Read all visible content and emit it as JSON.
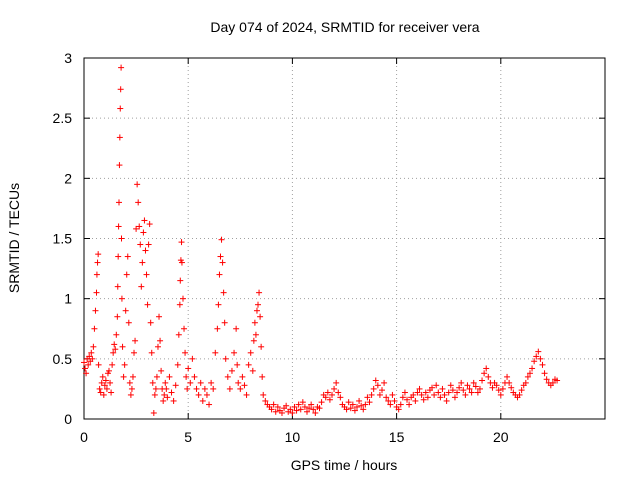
{
  "chart_data": {
    "type": "scatter",
    "title": "Day 074 of 2024, SRMTID for receiver vera",
    "xlabel": "GPS time / hours",
    "ylabel": "SRMTID / TECUs",
    "xlim": [
      0,
      25
    ],
    "ylim": [
      0,
      3
    ],
    "xticks": [
      0,
      5,
      10,
      15,
      20
    ],
    "xtick_labels": [
      "0",
      "5",
      "10",
      "15",
      "20"
    ],
    "yticks": [
      0,
      0.5,
      1,
      1.5,
      2,
      2.5,
      3
    ],
    "ytick_labels": [
      "0",
      "0.5",
      "1",
      "1.5",
      "2",
      "2.5",
      "3"
    ],
    "grid": true,
    "marker": "+",
    "color": "#ff0000",
    "series": [
      {
        "name": "SRMTID",
        "points": [
          [
            0.0,
            0.47
          ],
          [
            0.05,
            0.42
          ],
          [
            0.1,
            0.38
          ],
          [
            0.15,
            0.5
          ],
          [
            0.2,
            0.45
          ],
          [
            0.25,
            0.52
          ],
          [
            0.3,
            0.48
          ],
          [
            0.35,
            0.55
          ],
          [
            0.4,
            0.5
          ],
          [
            0.45,
            0.6
          ],
          [
            0.5,
            0.75
          ],
          [
            0.55,
            0.9
          ],
          [
            0.6,
            1.05
          ],
          [
            0.62,
            1.2
          ],
          [
            0.65,
            1.3
          ],
          [
            0.68,
            1.37
          ],
          [
            0.7,
            0.45
          ],
          [
            0.75,
            0.25
          ],
          [
            0.8,
            0.22
          ],
          [
            0.85,
            0.3
          ],
          [
            0.9,
            0.35
          ],
          [
            0.95,
            0.2
          ],
          [
            1.0,
            0.28
          ],
          [
            1.05,
            0.32
          ],
          [
            1.1,
            0.25
          ],
          [
            1.15,
            0.38
          ],
          [
            1.2,
            0.4
          ],
          [
            1.25,
            0.3
          ],
          [
            1.3,
            0.22
          ],
          [
            1.35,
            0.45
          ],
          [
            1.4,
            0.55
          ],
          [
            1.45,
            0.62
          ],
          [
            1.5,
            0.58
          ],
          [
            1.55,
            0.7
          ],
          [
            1.6,
            0.85
          ],
          [
            1.62,
            1.1
          ],
          [
            1.64,
            1.35
          ],
          [
            1.66,
            1.6
          ],
          [
            1.68,
            1.8
          ],
          [
            1.7,
            2.11
          ],
          [
            1.72,
            2.34
          ],
          [
            1.74,
            2.58
          ],
          [
            1.76,
            2.74
          ],
          [
            1.78,
            2.92
          ],
          [
            1.8,
            1.5
          ],
          [
            1.82,
            1.0
          ],
          [
            1.85,
            0.6
          ],
          [
            1.9,
            0.35
          ],
          [
            1.95,
            0.45
          ],
          [
            2.0,
            0.9
          ],
          [
            2.05,
            1.2
          ],
          [
            2.1,
            1.35
          ],
          [
            2.15,
            0.8
          ],
          [
            2.2,
            0.3
          ],
          [
            2.25,
            0.2
          ],
          [
            2.3,
            0.25
          ],
          [
            2.35,
            0.35
          ],
          [
            2.4,
            0.55
          ],
          [
            2.45,
            0.65
          ],
          [
            2.5,
            1.58
          ],
          [
            2.55,
            1.95
          ],
          [
            2.6,
            1.8
          ],
          [
            2.65,
            1.6
          ],
          [
            2.7,
            1.45
          ],
          [
            2.75,
            1.1
          ],
          [
            2.8,
            1.3
          ],
          [
            2.85,
            1.55
          ],
          [
            2.9,
            1.65
          ],
          [
            2.95,
            1.4
          ],
          [
            3.0,
            1.2
          ],
          [
            3.05,
            0.95
          ],
          [
            3.1,
            1.45
          ],
          [
            3.15,
            1.62
          ],
          [
            3.2,
            0.8
          ],
          [
            3.25,
            0.55
          ],
          [
            3.3,
            0.3
          ],
          [
            3.35,
            0.05
          ],
          [
            3.4,
            0.2
          ],
          [
            3.45,
            0.25
          ],
          [
            3.5,
            0.35
          ],
          [
            3.55,
            0.6
          ],
          [
            3.6,
            0.85
          ],
          [
            3.65,
            0.65
          ],
          [
            3.7,
            0.4
          ],
          [
            3.75,
            0.25
          ],
          [
            3.8,
            0.15
          ],
          [
            3.85,
            0.2
          ],
          [
            3.9,
            0.3
          ],
          [
            3.95,
            0.25
          ],
          [
            4.0,
            0.18
          ],
          [
            4.1,
            0.35
          ],
          [
            4.2,
            0.22
          ],
          [
            4.3,
            0.15
          ],
          [
            4.4,
            0.28
          ],
          [
            4.5,
            0.45
          ],
          [
            4.55,
            0.7
          ],
          [
            4.6,
            0.95
          ],
          [
            4.62,
            1.15
          ],
          [
            4.65,
            1.32
          ],
          [
            4.68,
            1.47
          ],
          [
            4.7,
            1.3
          ],
          [
            4.75,
            1.0
          ],
          [
            4.8,
            0.75
          ],
          [
            4.85,
            0.55
          ],
          [
            4.9,
            0.35
          ],
          [
            4.95,
            0.25
          ],
          [
            5.0,
            0.42
          ],
          [
            5.1,
            0.3
          ],
          [
            5.2,
            0.5
          ],
          [
            5.3,
            0.35
          ],
          [
            5.4,
            0.25
          ],
          [
            5.5,
            0.2
          ],
          [
            5.6,
            0.3
          ],
          [
            5.7,
            0.15
          ],
          [
            5.8,
            0.25
          ],
          [
            5.9,
            0.2
          ],
          [
            6.0,
            0.12
          ],
          [
            6.1,
            0.3
          ],
          [
            6.2,
            0.25
          ],
          [
            6.3,
            0.55
          ],
          [
            6.4,
            0.75
          ],
          [
            6.45,
            0.95
          ],
          [
            6.5,
            1.2
          ],
          [
            6.55,
            1.35
          ],
          [
            6.6,
            1.49
          ],
          [
            6.65,
            1.3
          ],
          [
            6.7,
            1.05
          ],
          [
            6.75,
            0.8
          ],
          [
            6.8,
            0.5
          ],
          [
            6.9,
            0.35
          ],
          [
            7.0,
            0.25
          ],
          [
            7.1,
            0.4
          ],
          [
            7.2,
            0.55
          ],
          [
            7.3,
            0.75
          ],
          [
            7.35,
            0.45
          ],
          [
            7.4,
            0.3
          ],
          [
            7.5,
            0.25
          ],
          [
            7.6,
            0.35
          ],
          [
            7.7,
            0.28
          ],
          [
            7.8,
            0.2
          ],
          [
            7.9,
            0.45
          ],
          [
            8.0,
            0.55
          ],
          [
            8.1,
            0.4
          ],
          [
            8.15,
            0.65
          ],
          [
            8.2,
            0.8
          ],
          [
            8.25,
            0.7
          ],
          [
            8.3,
            0.9
          ],
          [
            8.35,
            0.95
          ],
          [
            8.4,
            1.05
          ],
          [
            8.45,
            0.85
          ],
          [
            8.5,
            0.6
          ],
          [
            8.55,
            0.35
          ],
          [
            8.6,
            0.2
          ],
          [
            8.7,
            0.15
          ],
          [
            8.8,
            0.12
          ],
          [
            8.9,
            0.1
          ],
          [
            9.0,
            0.08
          ],
          [
            9.1,
            0.12
          ],
          [
            9.2,
            0.06
          ],
          [
            9.3,
            0.1
          ],
          [
            9.4,
            0.07
          ],
          [
            9.5,
            0.05
          ],
          [
            9.6,
            0.09
          ],
          [
            9.7,
            0.11
          ],
          [
            9.8,
            0.06
          ],
          [
            9.9,
            0.08
          ],
          [
            10.0,
            0.05
          ],
          [
            10.1,
            0.1
          ],
          [
            10.2,
            0.07
          ],
          [
            10.3,
            0.12
          ],
          [
            10.4,
            0.08
          ],
          [
            10.5,
            0.14
          ],
          [
            10.6,
            0.1
          ],
          [
            10.7,
            0.06
          ],
          [
            10.8,
            0.09
          ],
          [
            10.9,
            0.12
          ],
          [
            11.0,
            0.08
          ],
          [
            11.1,
            0.05
          ],
          [
            11.2,
            0.1
          ],
          [
            11.3,
            0.09
          ],
          [
            11.4,
            0.14
          ],
          [
            11.5,
            0.2
          ],
          [
            11.6,
            0.18
          ],
          [
            11.7,
            0.22
          ],
          [
            11.8,
            0.16
          ],
          [
            11.9,
            0.2
          ],
          [
            12.0,
            0.25
          ],
          [
            12.1,
            0.3
          ],
          [
            12.2,
            0.22
          ],
          [
            12.3,
            0.18
          ],
          [
            12.4,
            0.12
          ],
          [
            12.5,
            0.1
          ],
          [
            12.6,
            0.08
          ],
          [
            12.7,
            0.14
          ],
          [
            12.8,
            0.09
          ],
          [
            12.9,
            0.12
          ],
          [
            13.0,
            0.07
          ],
          [
            13.1,
            0.1
          ],
          [
            13.2,
            0.15
          ],
          [
            13.3,
            0.11
          ],
          [
            13.4,
            0.08
          ],
          [
            13.5,
            0.12
          ],
          [
            13.6,
            0.18
          ],
          [
            13.7,
            0.14
          ],
          [
            13.8,
            0.2
          ],
          [
            13.9,
            0.25
          ],
          [
            14.0,
            0.32
          ],
          [
            14.1,
            0.28
          ],
          [
            14.2,
            0.2
          ],
          [
            14.3,
            0.24
          ],
          [
            14.4,
            0.3
          ],
          [
            14.5,
            0.18
          ],
          [
            14.6,
            0.15
          ],
          [
            14.7,
            0.12
          ],
          [
            14.8,
            0.2
          ],
          [
            14.9,
            0.15
          ],
          [
            15.0,
            0.1
          ],
          [
            15.1,
            0.08
          ],
          [
            15.2,
            0.12
          ],
          [
            15.3,
            0.18
          ],
          [
            15.4,
            0.22
          ],
          [
            15.5,
            0.16
          ],
          [
            15.6,
            0.12
          ],
          [
            15.7,
            0.18
          ],
          [
            15.8,
            0.2
          ],
          [
            15.9,
            0.15
          ],
          [
            16.0,
            0.22
          ],
          [
            16.1,
            0.25
          ],
          [
            16.2,
            0.2
          ],
          [
            16.3,
            0.16
          ],
          [
            16.4,
            0.22
          ],
          [
            16.5,
            0.18
          ],
          [
            16.6,
            0.24
          ],
          [
            16.7,
            0.26
          ],
          [
            16.8,
            0.2
          ],
          [
            16.9,
            0.28
          ],
          [
            17.0,
            0.22
          ],
          [
            17.1,
            0.18
          ],
          [
            17.2,
            0.25
          ],
          [
            17.3,
            0.2
          ],
          [
            17.4,
            0.15
          ],
          [
            17.5,
            0.22
          ],
          [
            17.6,
            0.28
          ],
          [
            17.7,
            0.24
          ],
          [
            17.8,
            0.18
          ],
          [
            17.9,
            0.22
          ],
          [
            18.0,
            0.26
          ],
          [
            18.1,
            0.3
          ],
          [
            18.2,
            0.24
          ],
          [
            18.3,
            0.2
          ],
          [
            18.4,
            0.28
          ],
          [
            18.5,
            0.25
          ],
          [
            18.6,
            0.22
          ],
          [
            18.7,
            0.3
          ],
          [
            18.8,
            0.27
          ],
          [
            18.9,
            0.22
          ],
          [
            19.0,
            0.25
          ],
          [
            19.1,
            0.32
          ],
          [
            19.2,
            0.38
          ],
          [
            19.3,
            0.42
          ],
          [
            19.4,
            0.35
          ],
          [
            19.5,
            0.3
          ],
          [
            19.6,
            0.26
          ],
          [
            19.7,
            0.3
          ],
          [
            19.8,
            0.28
          ],
          [
            19.9,
            0.24
          ],
          [
            20.0,
            0.2
          ],
          [
            20.1,
            0.25
          ],
          [
            20.2,
            0.3
          ],
          [
            20.3,
            0.35
          ],
          [
            20.4,
            0.3
          ],
          [
            20.5,
            0.26
          ],
          [
            20.6,
            0.22
          ],
          [
            20.7,
            0.2
          ],
          [
            20.8,
            0.18
          ],
          [
            20.9,
            0.2
          ],
          [
            21.0,
            0.24
          ],
          [
            21.1,
            0.28
          ],
          [
            21.2,
            0.3
          ],
          [
            21.3,
            0.35
          ],
          [
            21.4,
            0.38
          ],
          [
            21.5,
            0.42
          ],
          [
            21.6,
            0.48
          ],
          [
            21.7,
            0.52
          ],
          [
            21.8,
            0.56
          ],
          [
            21.9,
            0.5
          ],
          [
            22.0,
            0.45
          ],
          [
            22.1,
            0.38
          ],
          [
            22.2,
            0.33
          ],
          [
            22.3,
            0.3
          ],
          [
            22.4,
            0.28
          ],
          [
            22.5,
            0.3
          ],
          [
            22.6,
            0.33
          ],
          [
            22.7,
            0.32
          ]
        ]
      }
    ]
  }
}
